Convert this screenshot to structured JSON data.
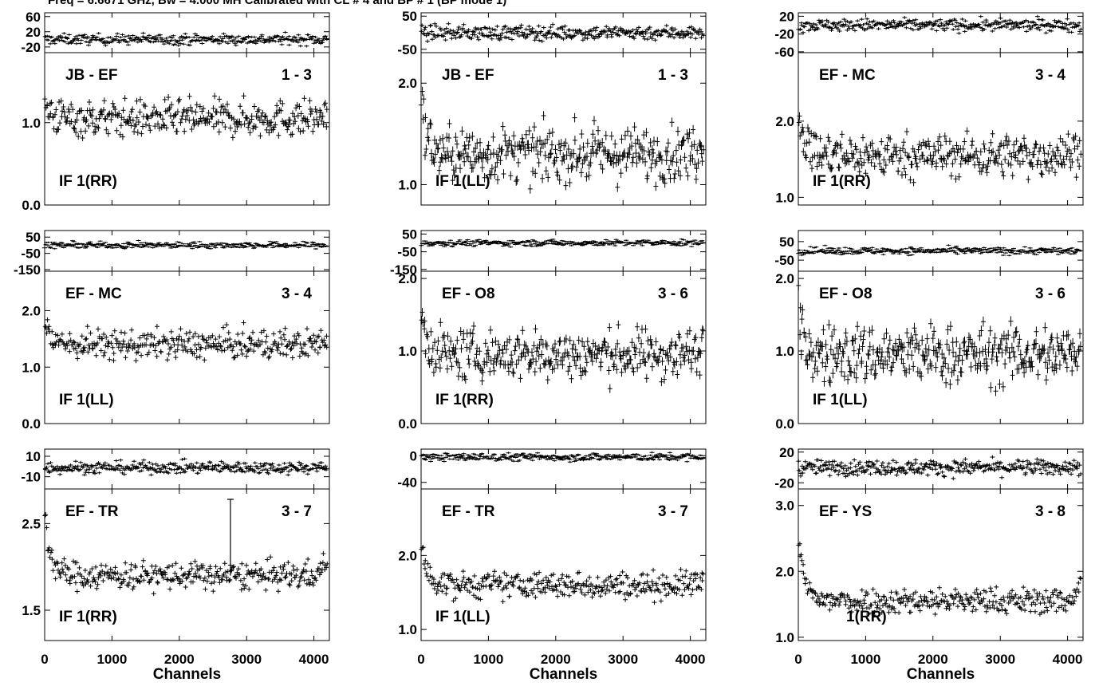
{
  "title": "Freq = 6.6671 GHz, Bw = 4.000 MH   Calibrated with CL # 4 and BP # 1 (BP mode 1)",
  "chart_data": {
    "type": "scatter",
    "xlabel": "Channels",
    "xlim": [
      0,
      4230
    ],
    "xticks": [
      0,
      1000,
      2000,
      3000,
      4000
    ],
    "panels": [
      {
        "baseline": "JB - EF",
        "antennas": "1 - 3",
        "if_label": "IF 1(RR)",
        "phase": {
          "ylim": [
            -35,
            70
          ],
          "yticks": [
            60,
            20,
            -20
          ],
          "mean": 0,
          "noise": 7
        },
        "amp": {
          "ylim": [
            0,
            1.85
          ],
          "yticks": [
            1.0,
            0.0
          ],
          "ytick_labels": [
            "1.0",
            "0.0"
          ],
          "mean": 1.05,
          "noise": 0.11,
          "edge_rise": 0.2,
          "spikes": []
        }
      },
      {
        "baseline": "JB - EF",
        "antennas": "1 - 3",
        "if_label": "IF 1(LL)",
        "phase": {
          "ylim": [
            -60,
            60
          ],
          "yticks": [
            50,
            -50
          ],
          "mean": 0,
          "noise": 11
        },
        "amp": {
          "ylim": [
            0.8,
            2.3
          ],
          "yticks": [
            2.0,
            1.0
          ],
          "ytick_labels": [
            "2.0",
            "1.0"
          ],
          "mean": 1.3,
          "noise": 0.13,
          "edge_rise": 0.5,
          "spikes": []
        }
      },
      {
        "baseline": "EF - MC",
        "antennas": "3 - 4",
        "if_label": "IF 1(RR)",
        "phase": {
          "ylim": [
            -62,
            28
          ],
          "yticks": [
            20,
            -20,
            -60
          ],
          "mean": 0,
          "noise": 7
        },
        "amp": {
          "ylim": [
            0.9,
            2.9
          ],
          "yticks": [
            2.0,
            1.0
          ],
          "ytick_labels": [
            "2.0",
            "1.0"
          ],
          "mean": 1.55,
          "noise": 0.14,
          "edge_rise": 0.6,
          "spikes": []
        }
      },
      {
        "baseline": "EF - MC",
        "antennas": "3 - 4",
        "if_label": "IF 1(LL)",
        "phase": {
          "ylim": [
            -160,
            90
          ],
          "yticks": [
            50,
            -50,
            -150
          ],
          "mean": 0,
          "noise": 10
        },
        "amp": {
          "ylim": [
            0,
            2.7
          ],
          "yticks": [
            2.0,
            1.0,
            0.0
          ],
          "ytick_labels": [
            "2.0",
            "1.0",
            "0.0"
          ],
          "mean": 1.4,
          "noise": 0.13,
          "edge_rise": 0.4,
          "spikes": []
        }
      },
      {
        "baseline": "EF - O8",
        "antennas": "3 - 6",
        "if_label": "IF 1(RR)",
        "phase": {
          "ylim": [
            -160,
            70
          ],
          "yticks": [
            50,
            -50,
            -150
          ],
          "mean": 0,
          "noise": 9
        },
        "amp": {
          "ylim": [
            0,
            2.1
          ],
          "yticks": [
            2.0,
            1.0,
            0.0
          ],
          "ytick_labels": [
            "2.0",
            "1.0",
            "0.0"
          ],
          "mean": 0.95,
          "noise": 0.17,
          "edge_rise": 0.6,
          "spikes": []
        }
      },
      {
        "baseline": "EF - O8",
        "antennas": "3 - 6",
        "if_label": "IF 1(LL)",
        "phase": {
          "ylim": [
            -110,
            110
          ],
          "yticks": [
            50,
            -50
          ],
          "mean": 0,
          "noise": 10
        },
        "amp": {
          "ylim": [
            0,
            2.1
          ],
          "yticks": [
            2.0,
            1.0,
            0.0
          ],
          "ytick_labels": [
            "2.0",
            "1.0",
            "0.0"
          ],
          "mean": 0.95,
          "noise": 0.2,
          "edge_rise": 0.5,
          "spikes": []
        }
      },
      {
        "baseline": "EF - TR",
        "antennas": "3 - 7",
        "if_label": "IF 1(RR)",
        "phase": {
          "ylim": [
            -22,
            17
          ],
          "yticks": [
            10,
            -10
          ],
          "mean": -1,
          "noise": 3
        },
        "amp": {
          "ylim": [
            1.15,
            2.9
          ],
          "yticks": [
            2.5,
            1.5
          ],
          "ytick_labels": [
            "2.5",
            "1.5"
          ],
          "mean": 1.9,
          "noise": 0.08,
          "edge_rise": 0.7,
          "spikes": [
            {
              "x": 2760,
              "y": 2.78
            }
          ]
        }
      },
      {
        "baseline": "EF - TR",
        "antennas": "3 - 7",
        "if_label": "IF 1(LL)",
        "phase": {
          "ylim": [
            -50,
            10
          ],
          "yticks": [
            0,
            -40
          ],
          "mean": -2,
          "noise": 3
        },
        "amp": {
          "ylim": [
            0.85,
            2.9
          ],
          "yticks": [
            2.0,
            1.0
          ],
          "ytick_labels": [
            "2.0",
            "1.0"
          ],
          "mean": 1.6,
          "noise": 0.09,
          "edge_rise": 0.5,
          "spikes": []
        }
      },
      {
        "baseline": "EF - YS",
        "antennas": "3 - 8",
        "if_label": "1(RR)",
        "phase": {
          "ylim": [
            -28,
            24
          ],
          "yticks": [
            20,
            -20
          ],
          "mean": 0,
          "noise": 5
        },
        "amp": {
          "ylim": [
            0.95,
            3.25
          ],
          "yticks": [
            3.0,
            2.0,
            1.0
          ],
          "ytick_labels": [
            "3.0",
            "2.0",
            "1.0"
          ],
          "mean": 1.55,
          "noise": 0.1,
          "edge_rise": 0.9,
          "spikes": []
        }
      }
    ]
  }
}
